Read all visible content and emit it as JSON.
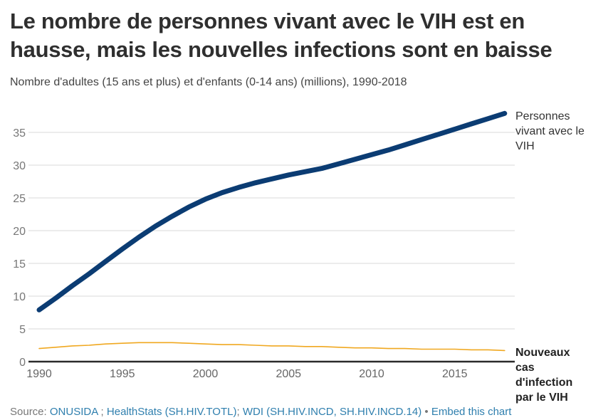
{
  "header": {
    "title": "Le nombre de personnes vivant avec le VIH est en hausse, mais les nouvelles infections sont en baisse",
    "subtitle": "Nombre d'adultes (15 ans et plus) et d'enfants (0-14 ans) (millions), 1990-2018"
  },
  "footer": {
    "source_prefix": "Source: ",
    "link_onusida": "ONUSIDA",
    "sep1": " ; ",
    "link_healthstats": "HealthStats (SH.HIV.TOTL)",
    "sep2": "; ",
    "link_wdi": "WDI (SH.HIV.INCD, SH.HIV.INCD.14)",
    "sep3": " • ",
    "link_embed": "Embed this chart"
  },
  "colors": {
    "plhiv": "#0b3c73",
    "new_infections": "#f0a820",
    "grid": "#d9d9d9",
    "baseline": "#2b2b2b",
    "link": "#2f7fae"
  },
  "chart_data": {
    "type": "line",
    "title": "Le nombre de personnes vivant avec le VIH est en hausse, mais les nouvelles infections sont en baisse",
    "subtitle": "Nombre d'adultes (15 ans et plus) et d'enfants (0-14 ans) (millions), 1990-2018",
    "xlabel": "",
    "ylabel": "",
    "x": [
      1990,
      1991,
      1992,
      1993,
      1994,
      1995,
      1996,
      1997,
      1998,
      1999,
      2000,
      2001,
      2002,
      2003,
      2004,
      2005,
      2006,
      2007,
      2008,
      2009,
      2010,
      2011,
      2012,
      2013,
      2014,
      2015,
      2016,
      2017,
      2018
    ],
    "xlim": [
      1990,
      2018
    ],
    "ylim": [
      0,
      38
    ],
    "x_ticks": [
      1990,
      1995,
      2000,
      2005,
      2010,
      2015
    ],
    "x_tick_labels": [
      "1990",
      "1995",
      "2000",
      "2005",
      "2010",
      "2015"
    ],
    "y_ticks": [
      0,
      5,
      10,
      15,
      20,
      25,
      30,
      35
    ],
    "y_tick_labels": [
      "0",
      "5",
      "10",
      "15",
      "20",
      "25",
      "30",
      "35"
    ],
    "grid": true,
    "legend": "direct-labels-right",
    "series": [
      {
        "name": "Personnes vivant avec le VIH",
        "label_lines": [
          "Personnes",
          "vivant avec le",
          "VIH"
        ],
        "values": [
          7.9,
          9.7,
          11.6,
          13.4,
          15.3,
          17.2,
          19.0,
          20.7,
          22.2,
          23.6,
          24.8,
          25.8,
          26.6,
          27.3,
          27.9,
          28.5,
          29.0,
          29.5,
          30.2,
          30.9,
          31.6,
          32.3,
          33.1,
          33.9,
          34.7,
          35.5,
          36.3,
          37.1,
          37.9
        ]
      },
      {
        "name": "Nouveaux cas d'infection par le VIH",
        "label_lines": [
          "Nouveaux",
          "cas",
          "d'infection",
          "par le VIH"
        ],
        "values": [
          2.0,
          2.2,
          2.4,
          2.5,
          2.7,
          2.8,
          2.9,
          2.9,
          2.9,
          2.8,
          2.7,
          2.6,
          2.6,
          2.5,
          2.4,
          2.4,
          2.3,
          2.3,
          2.2,
          2.1,
          2.1,
          2.0,
          2.0,
          1.9,
          1.9,
          1.9,
          1.8,
          1.8,
          1.7
        ]
      }
    ]
  }
}
